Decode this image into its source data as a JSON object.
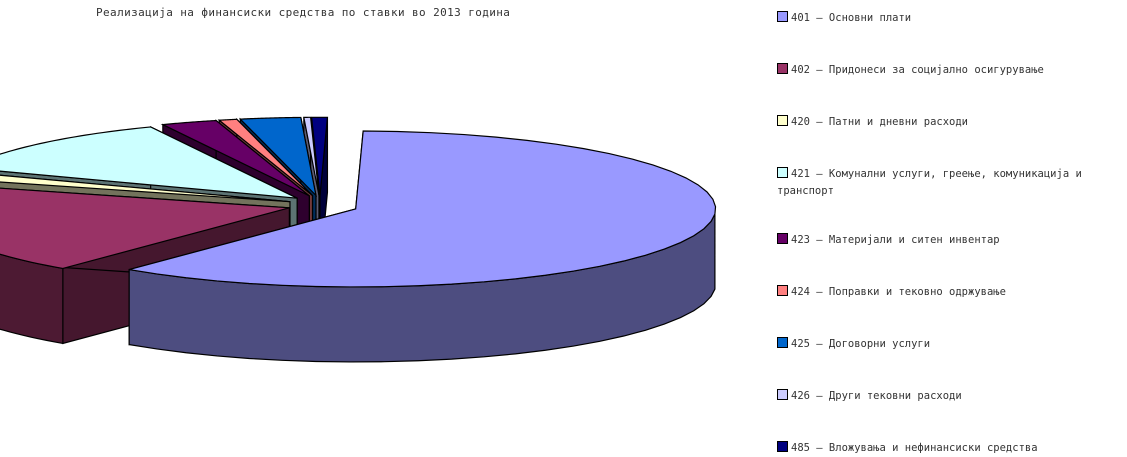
{
  "chart_data": {
    "type": "pie",
    "title": "Реализација на финансиски средства по ставки во 2013 година",
    "legend_position": "right",
    "exploded": true,
    "three_d": true,
    "slices": [
      {
        "label": "401 – Основни плати",
        "value": 60.5,
        "color": "#9999FF"
      },
      {
        "label": "402 – Придонеси за социјално осигурување",
        "value": 19.0,
        "color": "#993366"
      },
      {
        "label": "420 – Патни и дневни расходи",
        "value": 1.5,
        "color": "#FFFFCC"
      },
      {
        "label": "421 – Комунални услуги, греење, комуникација и транспорт",
        "value": 12.0,
        "color": "#CCFFFF"
      },
      {
        "label": "423 – Материјали и ситен инвентар",
        "value": 2.5,
        "color": "#660066"
      },
      {
        "label": "424 – Поправки и тековно одржување",
        "value": 0.8,
        "color": "#FF8080"
      },
      {
        "label": "425 – Договорни услуги",
        "value": 2.7,
        "color": "#0066CC"
      },
      {
        "label": "426 – Други тековни расходи",
        "value": 0.3,
        "color": "#CCCCFF"
      },
      {
        "label": "485 – Вложувања и нефинансиски средства",
        "value": 0.7,
        "color": "#000080"
      }
    ]
  }
}
